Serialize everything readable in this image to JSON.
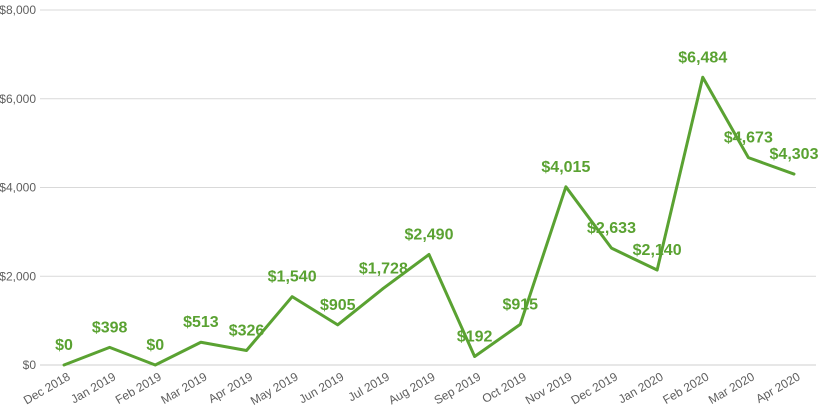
{
  "chart_data": {
    "type": "line",
    "categories": [
      "Dec 2018",
      "Jan 2019",
      "Feb 2019",
      "Mar 2019",
      "Apr 2019",
      "May 2019",
      "Jun 2019",
      "Jul 2019",
      "Aug 2019",
      "Sep 2019",
      "Oct 2019",
      "Nov 2019",
      "Dec 2019",
      "Jan 2020",
      "Feb 2020",
      "Mar 2020",
      "Apr 2020"
    ],
    "values": [
      0,
      398,
      0,
      513,
      326,
      1540,
      905,
      1728,
      2490,
      192,
      915,
      4015,
      2633,
      2140,
      6484,
      4673,
      4303
    ],
    "data_labels": [
      "$0",
      "$398",
      "$0",
      "$513",
      "$326",
      "$1,540",
      "$905",
      "$1,728",
      "$2,490",
      "$192",
      "$915",
      "$4,015",
      "$2,633",
      "$2,140",
      "$6,484",
      "$4,673",
      "$4,303"
    ],
    "title": "",
    "xlabel": "",
    "ylabel": "",
    "ylim": [
      0,
      8000
    ],
    "yticks": [
      0,
      2000,
      4000,
      6000,
      8000
    ],
    "ytick_labels": [
      "$0",
      "$2,000",
      "$4,000",
      "$6,000",
      "$8,000"
    ],
    "grid": true,
    "legend": "none",
    "colors": {
      "line": "#5aa232",
      "label": "#5aa232",
      "grid": "#d9d9d9",
      "tick_text": "#5f5f5f"
    }
  }
}
